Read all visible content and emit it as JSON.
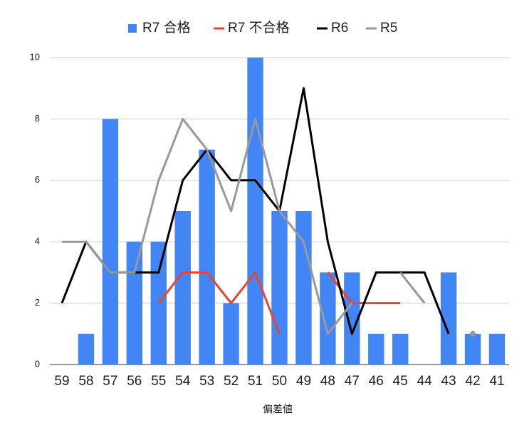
{
  "chart_data": {
    "type": "bar-line",
    "x_label": "偏差値",
    "categories": [
      "59",
      "58",
      "57",
      "56",
      "55",
      "54",
      "53",
      "52",
      "51",
      "50",
      "49",
      "48",
      "47",
      "46",
      "45",
      "44",
      "43",
      "42",
      "41"
    ],
    "series": [
      {
        "name": "R7 合格",
        "type": "bar",
        "color": "#4285f4",
        "values": [
          null,
          1,
          8,
          4,
          4,
          5,
          7,
          2,
          10,
          5,
          5,
          3,
          3,
          1,
          1,
          null,
          3,
          1,
          1
        ]
      },
      {
        "name": "R7 不合格",
        "type": "line",
        "color": "#ea4335",
        "values": [
          null,
          null,
          null,
          null,
          2,
          3,
          3,
          2,
          3,
          1,
          null,
          3,
          2,
          2,
          2,
          null,
          null,
          null,
          null
        ]
      },
      {
        "name": "R6",
        "type": "line",
        "color": "#000000",
        "values": [
          2,
          4,
          3,
          3,
          3,
          6,
          7,
          6,
          6,
          5,
          9,
          4,
          1,
          3,
          3,
          3,
          1,
          null,
          null
        ]
      },
      {
        "name": "R5",
        "type": "line",
        "color": "#999999",
        "values": [
          4,
          4,
          3,
          3,
          6,
          8,
          7,
          5,
          8,
          5,
          4,
          1,
          2,
          null,
          3,
          2,
          null,
          1,
          null
        ]
      }
    ],
    "ylim": [
      0,
      10
    ],
    "yticks": [
      0,
      2,
      4,
      6,
      8,
      10
    ],
    "grid": true,
    "legend": "top"
  }
}
